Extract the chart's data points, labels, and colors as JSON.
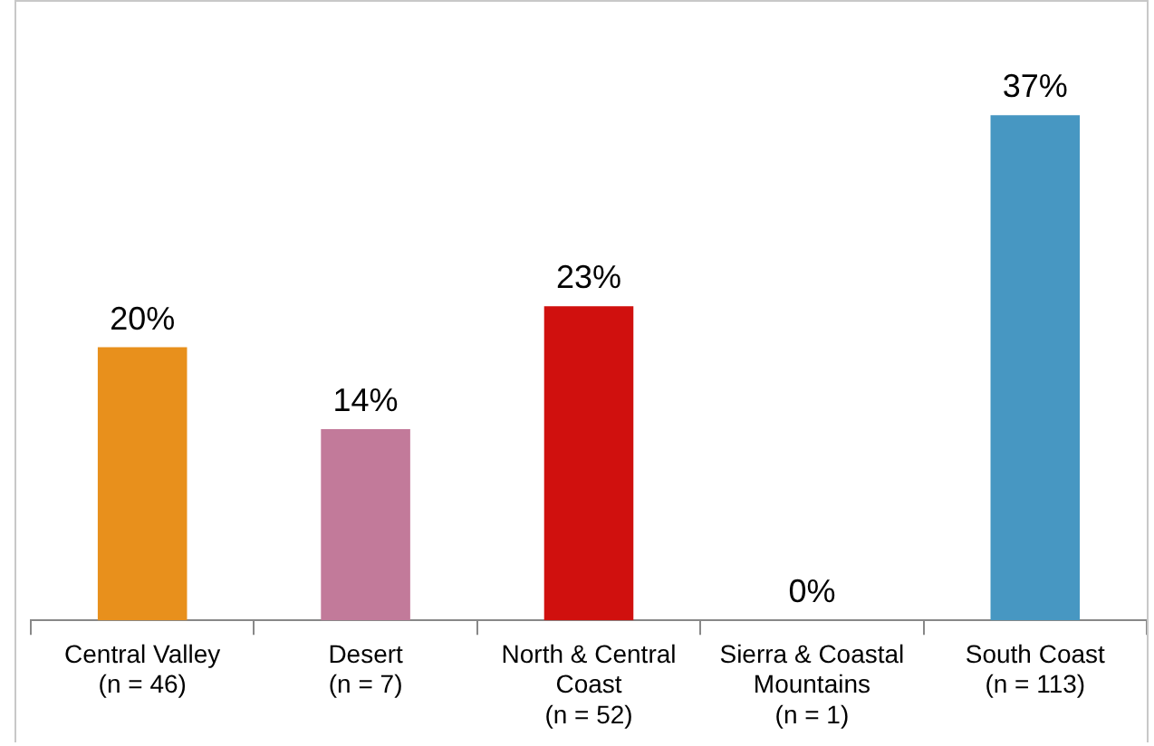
{
  "chart_data": {
    "type": "bar",
    "relative": false,
    "categories": [
      "Central Valley\n(n = 46)",
      "Desert\n(n = 7)",
      "North & Central\nCoast\n(n = 52)",
      "Sierra & Coastal\nMountains\n(n = 1)",
      "South Coast\n(n = 113)"
    ],
    "values": [
      20,
      14,
      23,
      0,
      37
    ],
    "colors": [
      "#e8901c",
      "#c27a9a",
      "#d0100e",
      "#c0c0c0",
      "#4797c2"
    ],
    "value_labels": [
      "20%",
      "14%",
      "23%",
      "0%",
      "37%"
    ],
    "grid": false,
    "legend": false
  }
}
